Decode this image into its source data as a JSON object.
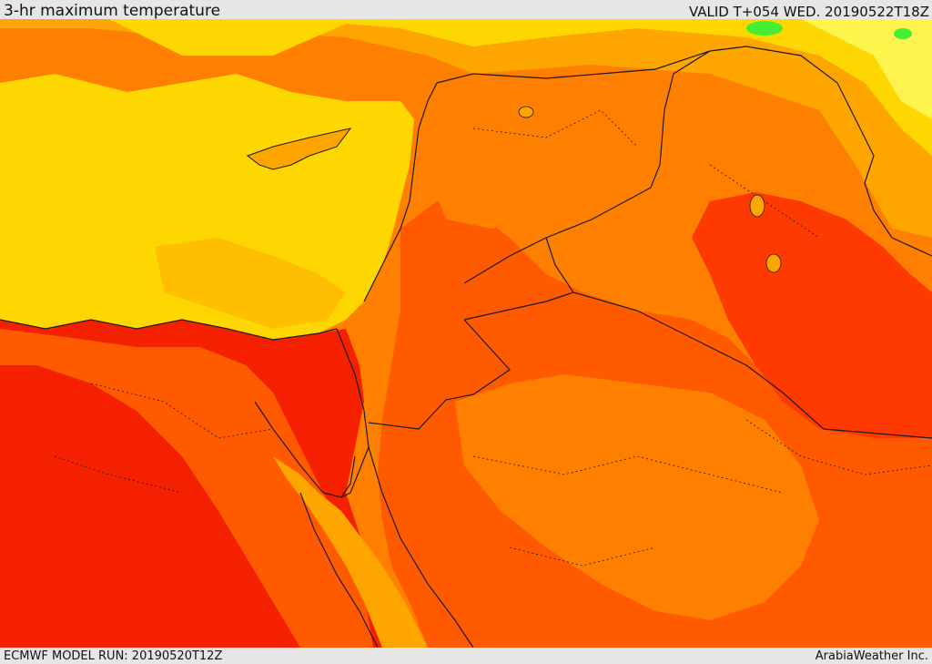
{
  "header": {
    "title": "3-hr maximum temperature",
    "valid": "VALID T+054 WED. 20190522T18Z"
  },
  "footer": {
    "model_run": "ECMWF MODEL RUN: 20190520T12Z",
    "credit": "ArabiaWeather Inc."
  },
  "map": {
    "colors": {
      "light_yellow": "#fff44d",
      "yellow": "#ffd700",
      "light_orange": "#ffa500",
      "orange": "#ff7f00",
      "dark_orange": "#ff5a00",
      "red_orange": "#ff3a00",
      "red": "#f52000",
      "green": "#44ee33",
      "border": "#1a1a1a"
    }
  }
}
